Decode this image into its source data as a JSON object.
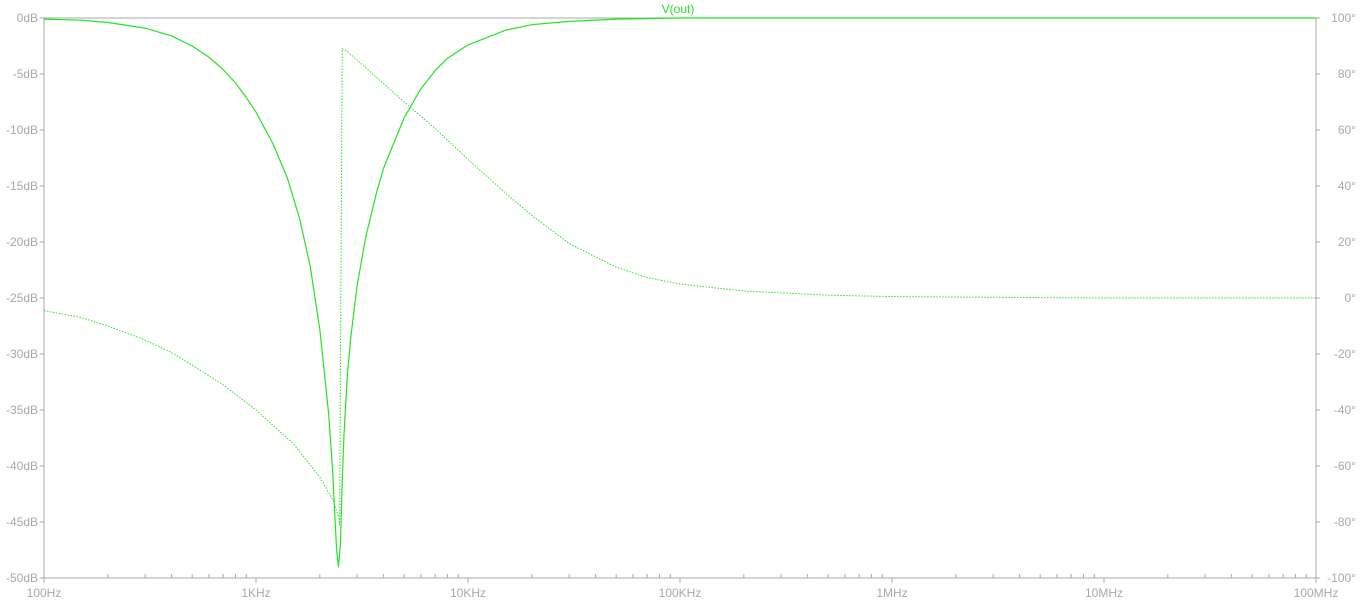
{
  "colors": {
    "trace": "#25e325",
    "axis": "#a9a9a9",
    "background": "#ffffff"
  },
  "chart_data": {
    "type": "line",
    "title": "V(out)",
    "x_scale": "log",
    "xlim": [
      100,
      100000000
    ],
    "x_ticks": [
      {
        "value": 100,
        "label": "100Hz"
      },
      {
        "value": 1000,
        "label": "1KHz"
      },
      {
        "value": 10000,
        "label": "10KHz"
      },
      {
        "value": 100000,
        "label": "100KHz"
      },
      {
        "value": 1000000,
        "label": "1MHz"
      },
      {
        "value": 10000000,
        "label": "10MHz"
      },
      {
        "value": 100000000,
        "label": "100MHz"
      }
    ],
    "y_left": {
      "ylim": [
        -50,
        0
      ],
      "ticks": [
        {
          "value": 0,
          "label": "0dB"
        },
        {
          "value": -5,
          "label": "-5dB"
        },
        {
          "value": -10,
          "label": "-10dB"
        },
        {
          "value": -15,
          "label": "-15dB"
        },
        {
          "value": -20,
          "label": "-20dB"
        },
        {
          "value": -25,
          "label": "-25dB"
        },
        {
          "value": -30,
          "label": "-30dB"
        },
        {
          "value": -35,
          "label": "-35dB"
        },
        {
          "value": -40,
          "label": "-40dB"
        },
        {
          "value": -45,
          "label": "-45dB"
        },
        {
          "value": -50,
          "label": "-50dB"
        }
      ]
    },
    "y_right": {
      "ylim": [
        -100,
        100
      ],
      "ticks": [
        {
          "value": 100,
          "label": "100°"
        },
        {
          "value": 80,
          "label": "80°"
        },
        {
          "value": 60,
          "label": "60°"
        },
        {
          "value": 40,
          "label": "40°"
        },
        {
          "value": 20,
          "label": "20°"
        },
        {
          "value": 0,
          "label": "0°"
        },
        {
          "value": -20,
          "label": "-20°"
        },
        {
          "value": -40,
          "label": "-40°"
        },
        {
          "value": -60,
          "label": "-60°"
        },
        {
          "value": -80,
          "label": "-80°"
        },
        {
          "value": -100,
          "label": "-100°"
        }
      ]
    },
    "grid": false,
    "series": [
      {
        "axis": "left",
        "style": "solid",
        "x": [
          100,
          150,
          200,
          300,
          400,
          500,
          600,
          700,
          800,
          900,
          1000,
          1200,
          1400,
          1600,
          1800,
          2000,
          2200,
          2300,
          2400,
          2450,
          2500,
          2550,
          2600,
          2700,
          2800,
          3000,
          3300,
          3700,
          4000,
          5000,
          6000,
          7000,
          8000,
          10000,
          15000,
          20000,
          30000,
          50000,
          100000,
          1000000,
          10000000,
          100000000
        ],
        "values": [
          -0.1,
          -0.2,
          -0.4,
          -0.9,
          -1.6,
          -2.5,
          -3.5,
          -4.6,
          -5.8,
          -7.1,
          -8.4,
          -11.2,
          -14.2,
          -17.8,
          -22.1,
          -27.8,
          -35.3,
          -40.5,
          -47.5,
          -49.0,
          -47.0,
          -41.5,
          -37.2,
          -31.8,
          -28.5,
          -23.9,
          -19.5,
          -15.6,
          -13.4,
          -8.9,
          -6.3,
          -4.7,
          -3.6,
          -2.4,
          -1.1,
          -0.6,
          -0.3,
          -0.1,
          0,
          0,
          0,
          0
        ]
      },
      {
        "axis": "right",
        "style": "dotted",
        "x": [
          100,
          150,
          200,
          300,
          400,
          500,
          700,
          1000,
          1500,
          2000,
          2300,
          2450,
          2480,
          2550,
          2700,
          3000,
          4000,
          5000,
          7000,
          10000,
          15000,
          20000,
          30000,
          50000,
          70000,
          100000,
          200000,
          500000,
          1000000,
          10000000,
          100000000
        ],
        "values": [
          -4.5,
          -7,
          -10,
          -15,
          -19.5,
          -24,
          -31,
          -40,
          -52,
          -64,
          -72,
          -78,
          -81,
          89,
          88,
          85,
          76.5,
          70,
          60.5,
          49.5,
          37.5,
          29.5,
          19.5,
          11,
          7.3,
          5,
          2.5,
          1,
          0.5,
          0,
          0
        ]
      }
    ]
  }
}
